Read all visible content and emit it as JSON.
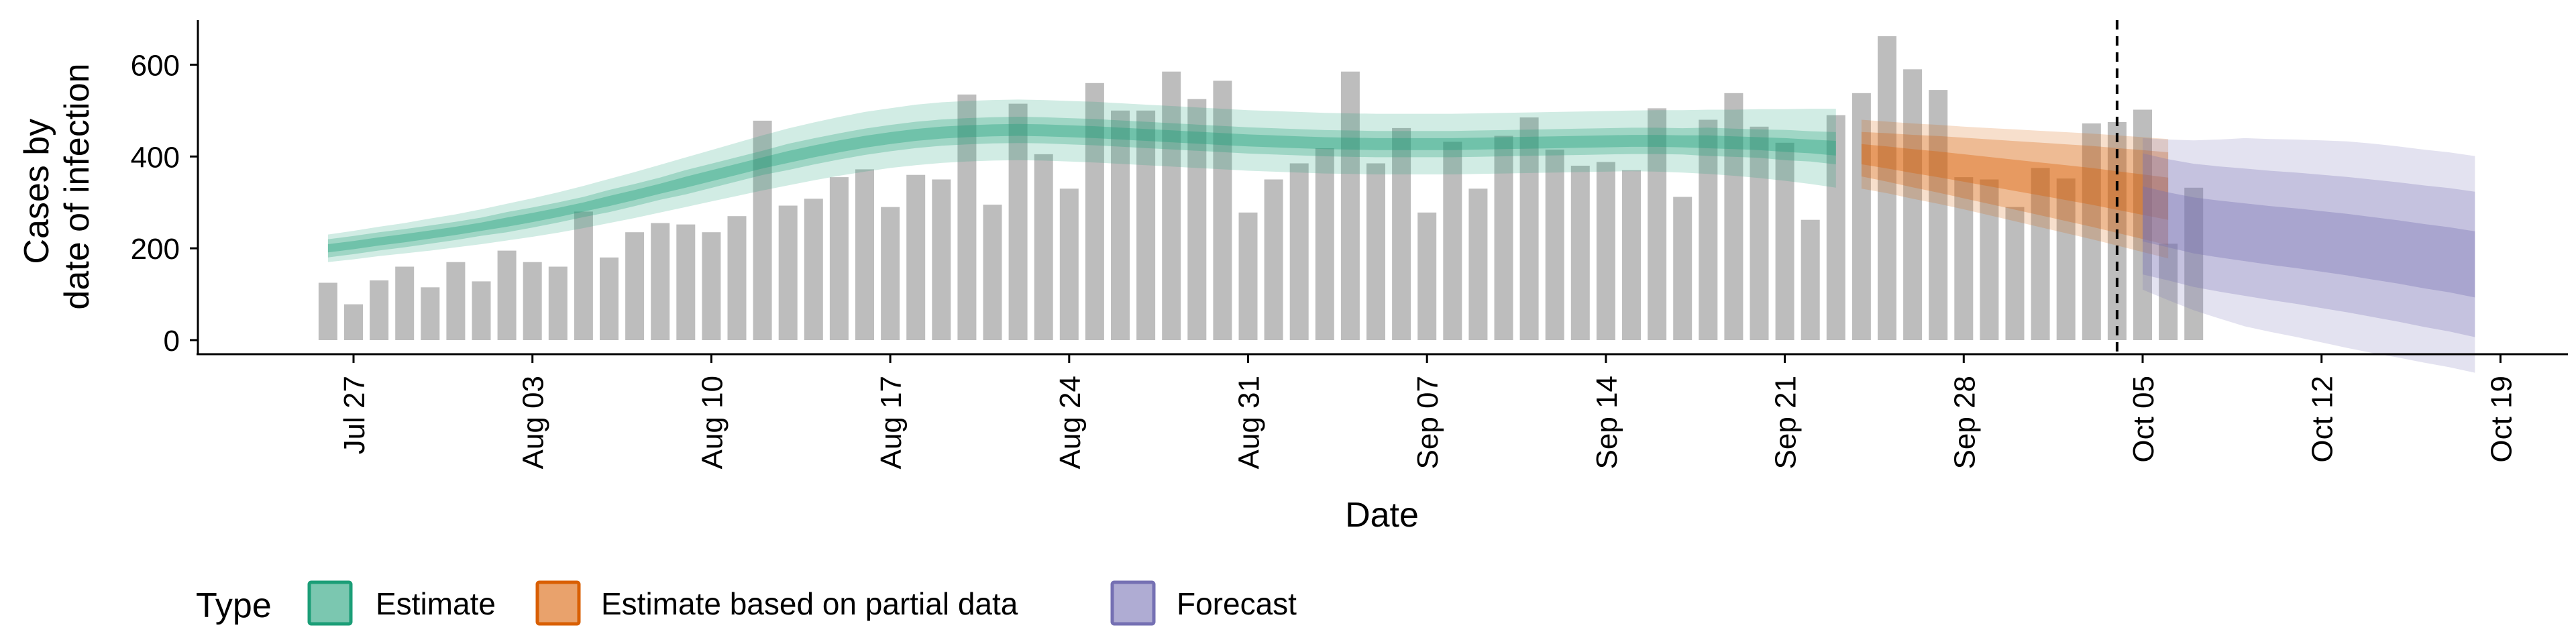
{
  "chart_data": {
    "type": "bar",
    "xlabel": "Date",
    "ylabel_lines": [
      "Cases by",
      "date of infection"
    ],
    "ylim": [
      0,
      700
    ],
    "y_ticks": [
      0,
      200,
      400,
      600
    ],
    "x_range": [
      "2020-07-22",
      "2020-10-20"
    ],
    "x_ticks": [
      {
        "date": "2020-07-27",
        "label": "Jul 27"
      },
      {
        "date": "2020-08-03",
        "label": "Aug 03"
      },
      {
        "date": "2020-08-10",
        "label": "Aug 10"
      },
      {
        "date": "2020-08-17",
        "label": "Aug 17"
      },
      {
        "date": "2020-08-24",
        "label": "Aug 24"
      },
      {
        "date": "2020-08-31",
        "label": "Aug 31"
      },
      {
        "date": "2020-09-07",
        "label": "Sep 07"
      },
      {
        "date": "2020-09-14",
        "label": "Sep 14"
      },
      {
        "date": "2020-09-21",
        "label": "Sep 21"
      },
      {
        "date": "2020-09-28",
        "label": "Sep 28"
      },
      {
        "date": "2020-10-05",
        "label": "Oct 05"
      },
      {
        "date": "2020-10-12",
        "label": "Oct 12"
      },
      {
        "date": "2020-10-19",
        "label": "Oct 19"
      }
    ],
    "grid": false,
    "bars": {
      "start_date": "2020-07-26",
      "values": [
        125,
        78,
        130,
        160,
        115,
        170,
        128,
        195,
        170,
        160,
        280,
        180,
        235,
        255,
        252,
        235,
        270,
        478,
        293,
        308,
        355,
        372,
        290,
        360,
        350,
        535,
        295,
        515,
        405,
        330,
        560,
        500,
        500,
        585,
        525,
        565,
        278,
        350,
        385,
        418,
        585,
        385,
        462,
        278,
        432,
        330,
        445,
        485,
        415,
        380,
        388,
        370,
        505,
        312,
        480,
        538,
        465,
        430,
        262,
        490,
        538,
        662,
        590,
        545,
        355,
        350,
        290,
        375,
        352,
        472,
        475,
        502,
        210,
        332
      ]
    },
    "reference_line": {
      "date": "2020-10-04",
      "style": "dashed"
    },
    "series": [
      {
        "name": "Estimate",
        "color": "#1b9e77",
        "start_date": "2020-07-26",
        "median": [
          200,
          207,
          215,
          222,
          230,
          238,
          247,
          257,
          267,
          278,
          290,
          303,
          316,
          330,
          344,
          358,
          372,
          386,
          399,
          411,
          422,
          432,
          440,
          447,
          452,
          455,
          457,
          458,
          457,
          455,
          453,
          450,
          447,
          444,
          441,
          438,
          435,
          433,
          431,
          429,
          428,
          427,
          427,
          427,
          427,
          428,
          429,
          430,
          431,
          432,
          433,
          434,
          434,
          433,
          432,
          430,
          428,
          425,
          422,
          418
        ],
        "inner_half": [
          9,
          9,
          9,
          9,
          9,
          9,
          9,
          10,
          10,
          10,
          10,
          11,
          11,
          11,
          12,
          12,
          12,
          12,
          13,
          13,
          13,
          13,
          13,
          13,
          13,
          13,
          13,
          13,
          13,
          13,
          13,
          13,
          13,
          13,
          13,
          13,
          13,
          13,
          13,
          13,
          13,
          13,
          13,
          13,
          13,
          13,
          13,
          13,
          13,
          13,
          13,
          13,
          13,
          13,
          14,
          14,
          14,
          15,
          15,
          16
        ],
        "outer_half": [
          30,
          31,
          32,
          33,
          35,
          36,
          38,
          40,
          42,
          44,
          46,
          48,
          50,
          52,
          54,
          56,
          58,
          60,
          62,
          63,
          64,
          65,
          65,
          66,
          66,
          66,
          66,
          66,
          66,
          66,
          66,
          66,
          66,
          66,
          66,
          66,
          66,
          66,
          66,
          66,
          66,
          66,
          66,
          66,
          66,
          66,
          66,
          66,
          66,
          66,
          66,
          66,
          67,
          68,
          70,
          72,
          75,
          78,
          82,
          86
        ]
      },
      {
        "name": "Estimate based on partial data",
        "color": "#d95f02",
        "start_date": "2020-09-24",
        "median": [
          405,
          398,
          390,
          383,
          375,
          367,
          359,
          351,
          343,
          335,
          326,
          317,
          308
        ],
        "inner_half": [
          22,
          24,
          26,
          28,
          30,
          32,
          34,
          36,
          38,
          40,
          42,
          44,
          46
        ],
        "outer_half": [
          75,
          78,
          82,
          86,
          90,
          95,
          100,
          105,
          110,
          115,
          120,
          125,
          130
        ]
      },
      {
        "name": "Forecast",
        "color": "#7570b3",
        "start_date": "2020-10-05",
        "median": [
          275,
          262,
          250,
          242,
          235,
          228,
          222,
          215,
          208,
          200,
          192,
          183,
          175,
          165
        ],
        "inner_half": [
          60,
          60,
          61,
          62,
          63,
          64,
          65,
          66,
          67,
          68,
          69,
          70,
          71,
          72
        ],
        "outer_half": [
          165,
          175,
          185,
          195,
          205,
          210,
          215,
          220,
          225,
          228,
          230,
          232,
          234,
          236
        ]
      }
    ],
    "legend": {
      "title": "Type",
      "placement": "bottom-left",
      "entries": [
        "Estimate",
        "Estimate based on partial data",
        "Forecast"
      ]
    }
  }
}
